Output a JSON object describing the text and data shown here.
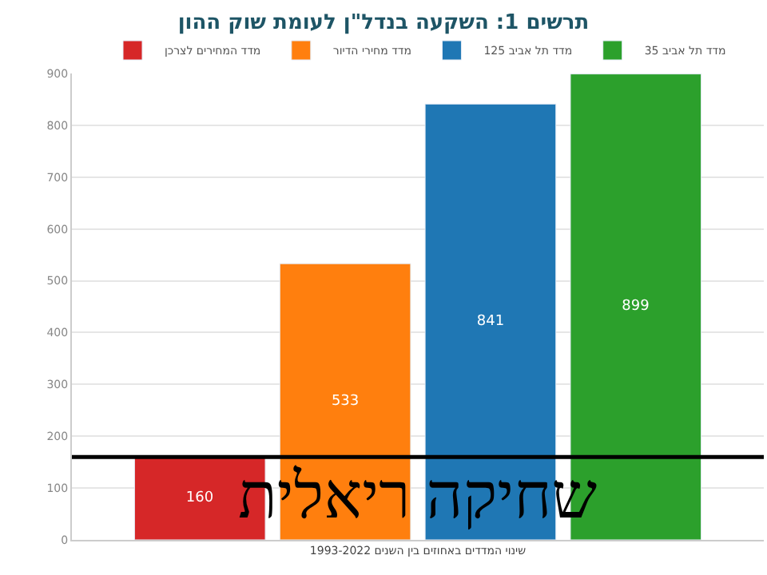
{
  "chart_data": {
    "type": "bar",
    "title": "תרשים 1: השקעה בנדל\"ן לעומת שוק ההון",
    "xlabel": "שינוי המדדים באחוזים בין השנים 1993-2022",
    "categories": [
      null
    ],
    "series": [
      {
        "name": "מדד המחירים לצרכן",
        "color": "#d62728",
        "values": [
          160
        ]
      },
      {
        "name": "מדד מחירי הדיור",
        "color": "#ff7f0e",
        "values": [
          533
        ]
      },
      {
        "name": "מדד תל אביב 125",
        "color": "#1f77b4",
        "values": [
          841
        ]
      },
      {
        "name": "מדד תל אביב 35",
        "color": "#2ca02c",
        "values": [
          899
        ]
      }
    ],
    "ylim": [
      0,
      900
    ],
    "yticks": [
      0,
      100,
      200,
      300,
      400,
      500,
      600,
      700,
      800,
      900
    ],
    "grid": "y",
    "legend": "top",
    "data_labels": true,
    "ref_lines": [
      {
        "axis": "y",
        "value": 160,
        "label": "שחיקה ריאלית",
        "color": "#000000"
      }
    ]
  }
}
